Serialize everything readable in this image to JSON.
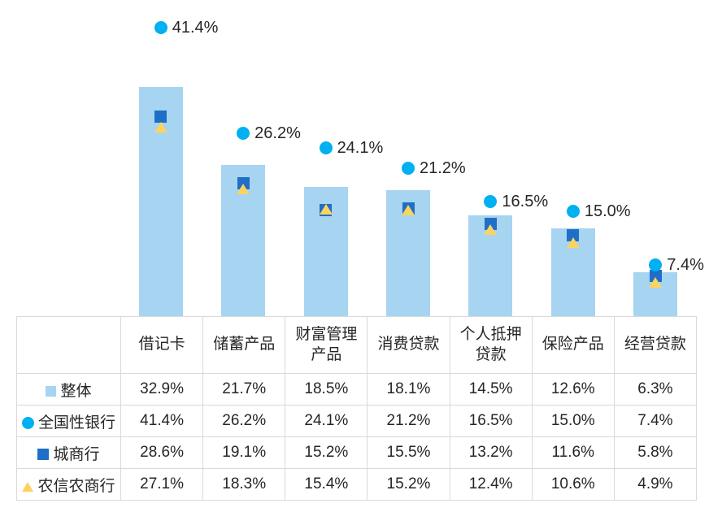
{
  "chart_data": {
    "type": "bar",
    "title": "",
    "xlabel": "",
    "ylabel": "",
    "ylim": [
      0,
      45
    ],
    "grid": false,
    "legend_position": "table-rows",
    "categories": [
      "借记卡",
      "储蓄产品",
      "财富管理产品",
      "消费贷款",
      "个人抵押贷款",
      "保险产品",
      "经营贷款"
    ],
    "series": [
      {
        "name": "整体",
        "type": "bar",
        "marker": "square-light",
        "color": "#A6D4F1",
        "values": [
          32.9,
          21.7,
          18.5,
          18.1,
          14.5,
          12.6,
          6.3
        ]
      },
      {
        "name": "全国性银行",
        "type": "scatter",
        "marker": "circle",
        "color": "#00B0F0",
        "values": [
          41.4,
          26.2,
          24.1,
          21.2,
          16.5,
          15.0,
          7.4
        ]
      },
      {
        "name": "城商行",
        "type": "scatter",
        "marker": "square",
        "color": "#1F6FC6",
        "values": [
          28.6,
          19.1,
          15.2,
          15.5,
          13.2,
          11.6,
          5.8
        ]
      },
      {
        "name": "农信农商行",
        "type": "scatter",
        "marker": "triangle",
        "color": "#FBD35E",
        "values": [
          27.1,
          18.3,
          15.4,
          15.2,
          12.4,
          10.6,
          4.9
        ]
      }
    ],
    "data_labels": {
      "series": "全国性银行",
      "values": [
        "41.4%",
        "26.2%",
        "24.1%",
        "21.2%",
        "16.5%",
        "15.0%",
        "7.4%"
      ]
    }
  },
  "table": {
    "column_headers": [
      "借记卡",
      "储蓄产品",
      "财富管理\n产品",
      "消费贷款",
      "个人抵押\n贷款",
      "保险产品",
      "经营贷款"
    ],
    "rows": [
      {
        "label": "整体",
        "marker": "square-light",
        "values": [
          "32.9%",
          "21.7%",
          "18.5%",
          "18.1%",
          "14.5%",
          "12.6%",
          "6.3%"
        ]
      },
      {
        "label": "全国性银行",
        "marker": "circle",
        "values": [
          "41.4%",
          "26.2%",
          "24.1%",
          "21.2%",
          "16.5%",
          "15.0%",
          "7.4%"
        ]
      },
      {
        "label": "城商行",
        "marker": "square",
        "values": [
          "28.6%",
          "19.1%",
          "15.2%",
          "15.5%",
          "13.2%",
          "11.6%",
          "5.8%"
        ]
      },
      {
        "label": "农信农商行",
        "marker": "triangle",
        "values": [
          "27.1%",
          "18.3%",
          "15.4%",
          "15.2%",
          "12.4%",
          "10.6%",
          "4.9%"
        ]
      }
    ]
  },
  "colors": {
    "bar": "#A6D4F1",
    "circle": "#00B0F0",
    "square": "#1F6FC6",
    "triangle": "#FBD35E",
    "text": "#262626",
    "border": "#D9D9D9"
  }
}
